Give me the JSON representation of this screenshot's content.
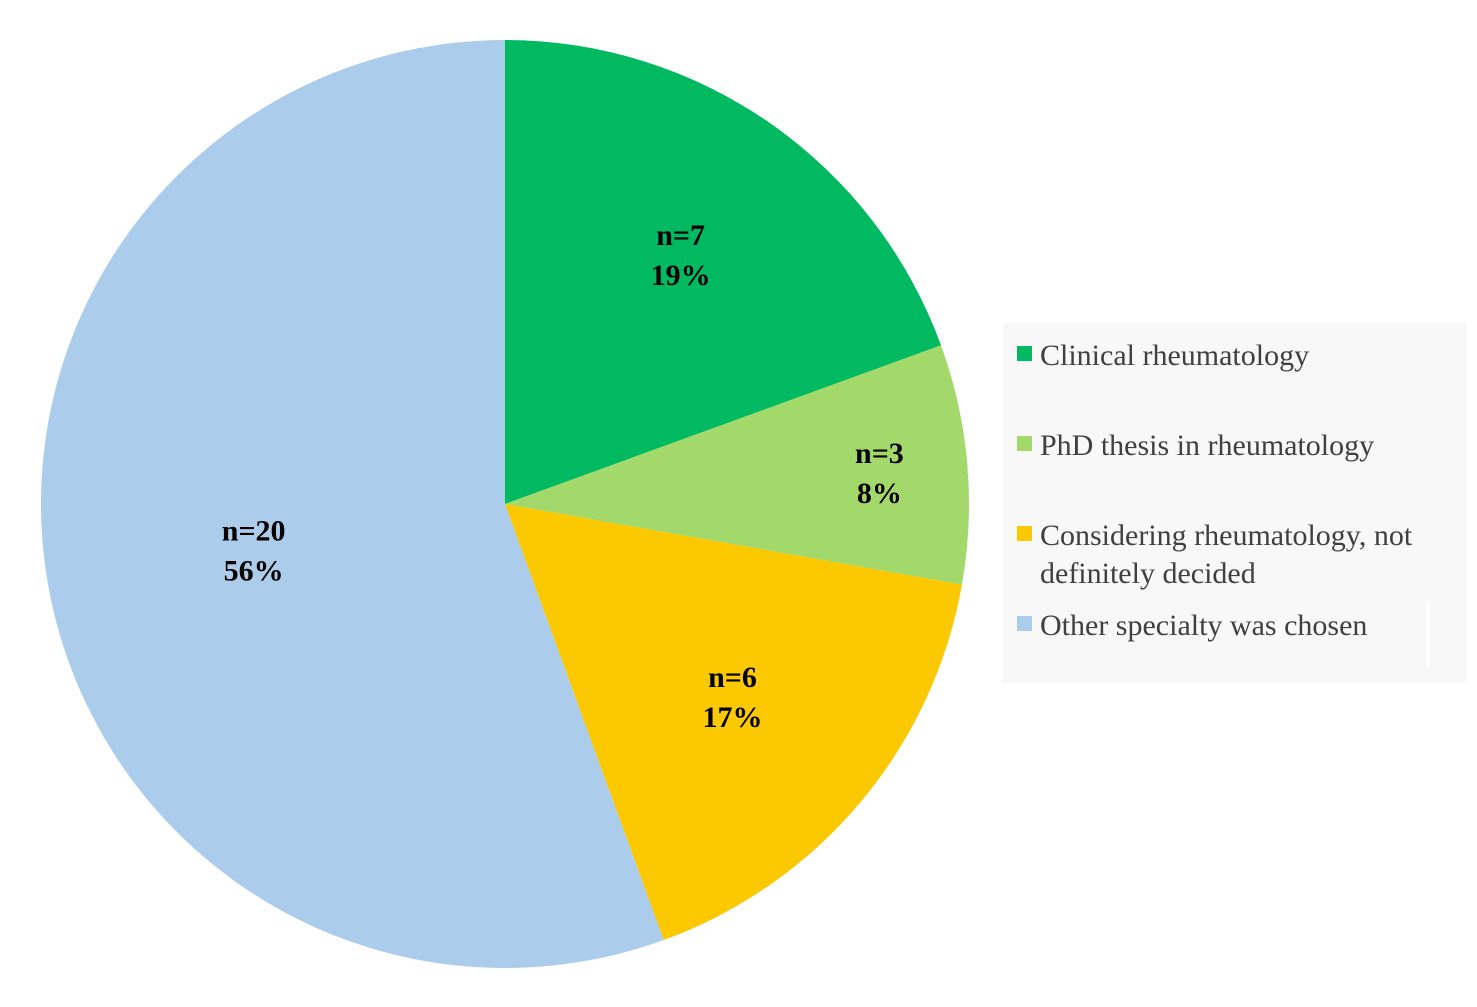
{
  "chart_data": {
    "type": "pie",
    "title": "",
    "slices": [
      {
        "label": "Clinical rheumatology",
        "count_label": "n=7",
        "percent_label": "19%",
        "value": 7,
        "color": "#00b960"
      },
      {
        "label": "PhD thesis in rheumatology",
        "count_label": "n=3",
        "percent_label": "8%",
        "value": 3,
        "color": "#a3d86a"
      },
      {
        "label": "Considering rheumatology, not definitely decided",
        "count_label": "n=6",
        "percent_label": "17%",
        "value": 6,
        "color": "#fcc800"
      },
      {
        "label": "Other specialty was chosen",
        "count_label": "n=20",
        "percent_label": "56%",
        "value": 20,
        "color": "#abcdeb"
      }
    ],
    "legend_position": "right",
    "start_angle": "12 o'clock",
    "direction": "clockwise"
  }
}
